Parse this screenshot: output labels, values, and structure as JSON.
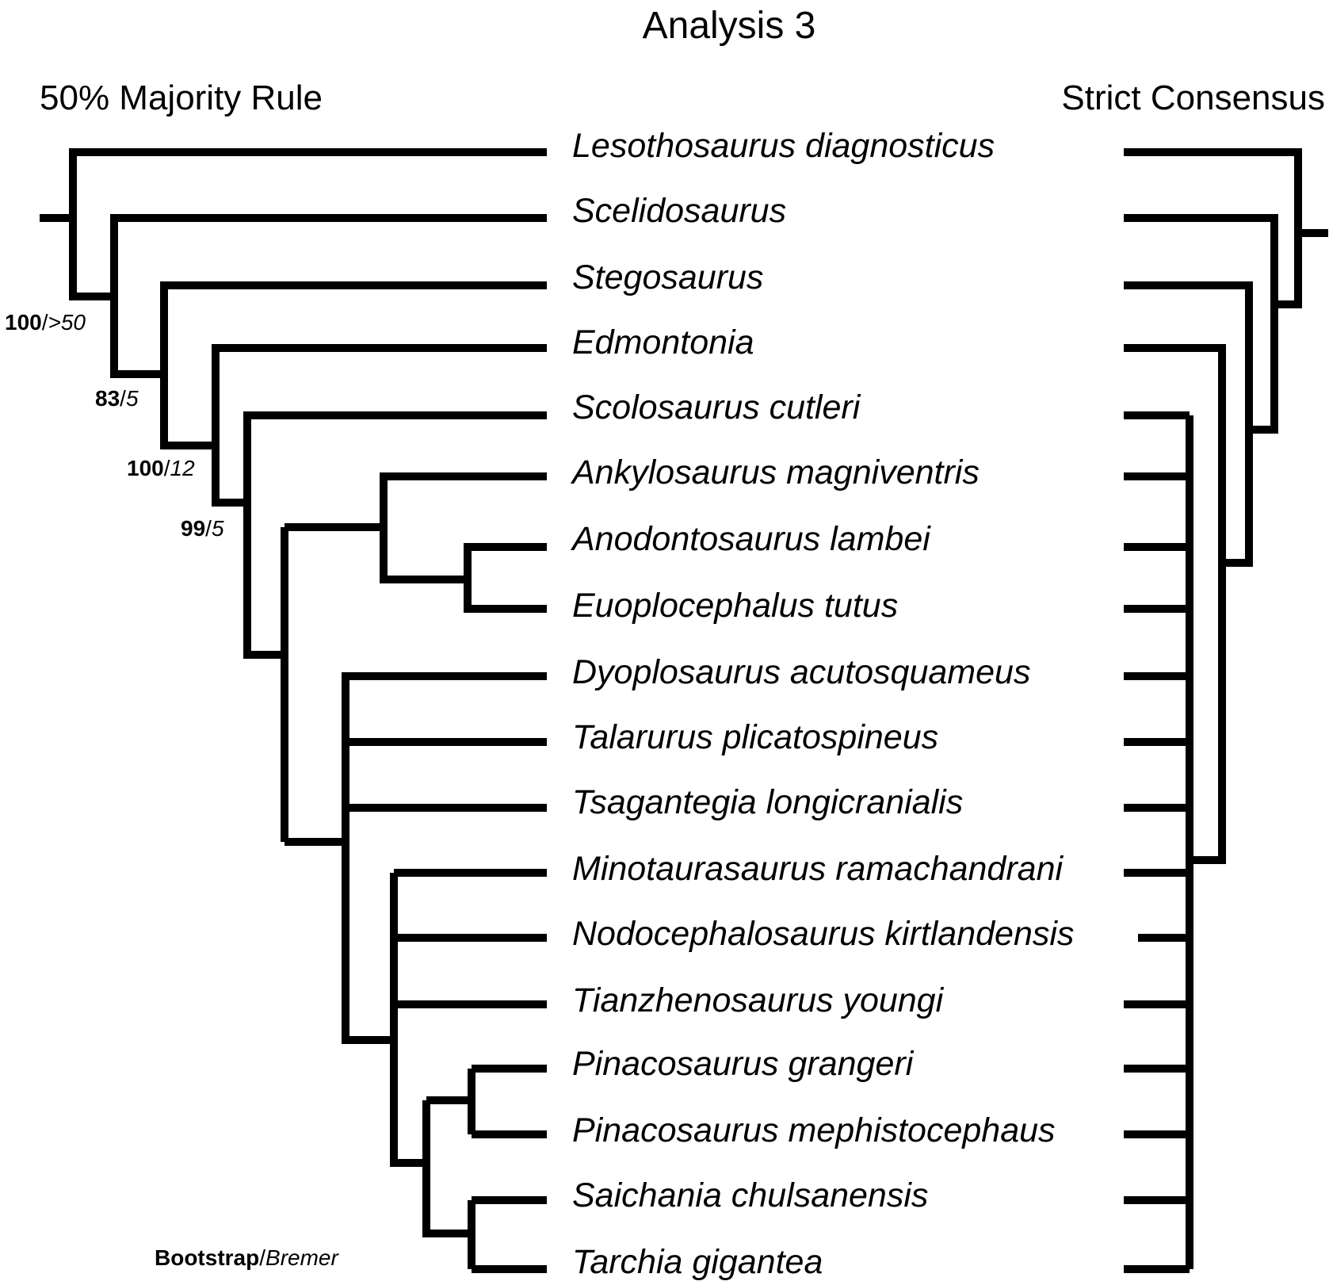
{
  "title": "Analysis 3",
  "left_tree": {
    "title": "50% Majority Rule",
    "supports": [
      {
        "bootstrap": "100",
        "sep": "/",
        "bremer": ">50"
      },
      {
        "bootstrap": "83",
        "sep": "/",
        "bremer": "5"
      },
      {
        "bootstrap": "100",
        "sep": "/",
        "bremer": "12"
      },
      {
        "bootstrap": "99",
        "sep": "/",
        "bremer": "5"
      }
    ],
    "legend": {
      "bootstrap": "Bootstrap",
      "sep": "/",
      "bremer": "Bremer"
    }
  },
  "right_tree": {
    "title": "Strict Consensus"
  },
  "taxa": [
    "Lesothosaurus diagnosticus",
    "Scelidosaurus",
    "Stegosaurus",
    "Edmontonia",
    "Scolosaurus cutleri",
    "Ankylosaurus magniventris",
    "Anodontosaurus lambei",
    "Euoplocephalus tutus",
    "Dyoplosaurus acutosquameus",
    "Talarurus plicatospineus",
    "Tsagantegia longicranialis",
    "Minotaurasaurus ramachandrani",
    "Nodocephalosaurus kirtlandensis",
    "Tianzhenosaurus youngi",
    "Pinacosaurus grangeri",
    "Pinacosaurus mephistocephaus",
    "Saichania chulsanensis",
    "Tarchia gigantea"
  ]
}
